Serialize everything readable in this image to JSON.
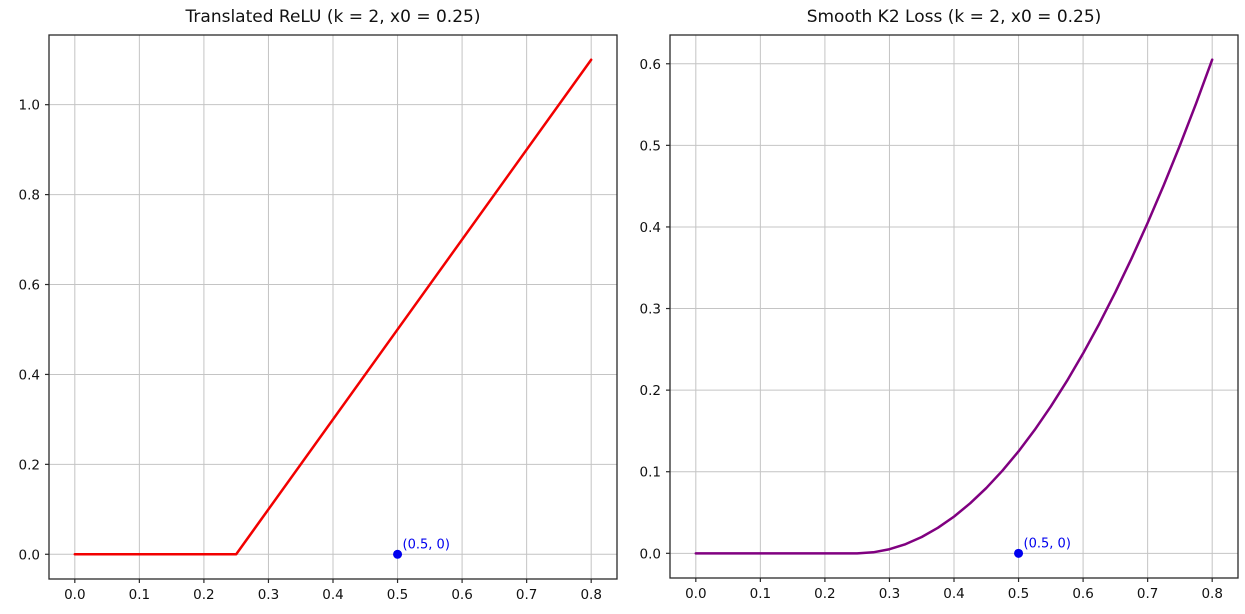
{
  "figure": {
    "background": "#ffffff",
    "text_color": "#111111",
    "grid_color": "#c4c4c4",
    "spine_color": "#2a2a2a"
  },
  "chart_data": [
    {
      "type": "line",
      "title": "Translated ReLU (k = 2, x0 = 0.25)",
      "xlabel": "",
      "ylabel": "",
      "grid": true,
      "xlim": [
        -0.04,
        0.84
      ],
      "ylim": [
        -0.055,
        1.155
      ],
      "x_tick_values": [
        0.0,
        0.1,
        0.2,
        0.3,
        0.4,
        0.5,
        0.6,
        0.7,
        0.8
      ],
      "x_tick_labels": [
        "0.0",
        "0.1",
        "0.2",
        "0.3",
        "0.4",
        "0.5",
        "0.6",
        "0.7",
        "0.8"
      ],
      "y_tick_values": [
        0.0,
        0.2,
        0.4,
        0.6,
        0.8,
        1.0
      ],
      "y_tick_labels": [
        "0.0",
        "0.2",
        "0.4",
        "0.6",
        "0.8",
        "1.0"
      ],
      "series": [
        {
          "name": "Translated ReLU",
          "color": "#f20000",
          "linewidth": 2.5,
          "x": [
            0.0,
            0.25,
            0.8
          ],
          "y": [
            0.0,
            0.0,
            1.1
          ]
        }
      ],
      "annotations": [
        {
          "text": "(0.5, 0)",
          "at": [
            0.5,
            0
          ],
          "marker": "circle",
          "marker_radius": 4.5,
          "color": "#0000ee",
          "text_offset": [
            5,
            -6
          ]
        }
      ]
    },
    {
      "type": "line",
      "title": "Smooth K2 Loss (k = 2, x0 = 0.25)",
      "xlabel": "",
      "ylabel": "",
      "grid": true,
      "xlim": [
        -0.04,
        0.84
      ],
      "ylim": [
        -0.03025,
        0.63525
      ],
      "x_tick_values": [
        0.0,
        0.1,
        0.2,
        0.3,
        0.4,
        0.5,
        0.6,
        0.7,
        0.8
      ],
      "x_tick_labels": [
        "0.0",
        "0.1",
        "0.2",
        "0.3",
        "0.4",
        "0.5",
        "0.6",
        "0.7",
        "0.8"
      ],
      "y_tick_values": [
        0.0,
        0.1,
        0.2,
        0.3,
        0.4,
        0.5,
        0.6
      ],
      "y_tick_labels": [
        "0.0",
        "0.1",
        "0.2",
        "0.3",
        "0.4",
        "0.5",
        "0.6"
      ],
      "series": [
        {
          "name": "Smooth K2 Loss",
          "color": "#800080",
          "linewidth": 2.5,
          "x": [
            0.0,
            0.25,
            0.275,
            0.3,
            0.325,
            0.35,
            0.375,
            0.4,
            0.425,
            0.45,
            0.475,
            0.5,
            0.525,
            0.55,
            0.575,
            0.6,
            0.625,
            0.65,
            0.675,
            0.7,
            0.725,
            0.75,
            0.775,
            0.8
          ],
          "y": [
            0.0,
            0.0,
            0.00125,
            0.005,
            0.01125,
            0.02,
            0.03125,
            0.045,
            0.06125,
            0.08,
            0.10125,
            0.125,
            0.15125,
            0.18,
            0.21125,
            0.245,
            0.28125,
            0.32,
            0.36125,
            0.405,
            0.45125,
            0.5,
            0.55125,
            0.605
          ]
        }
      ],
      "annotations": [
        {
          "text": "(0.5, 0)",
          "at": [
            0.5,
            0
          ],
          "marker": "circle",
          "marker_radius": 4.5,
          "color": "#0000ee",
          "text_offset": [
            5,
            -6
          ]
        }
      ]
    }
  ]
}
